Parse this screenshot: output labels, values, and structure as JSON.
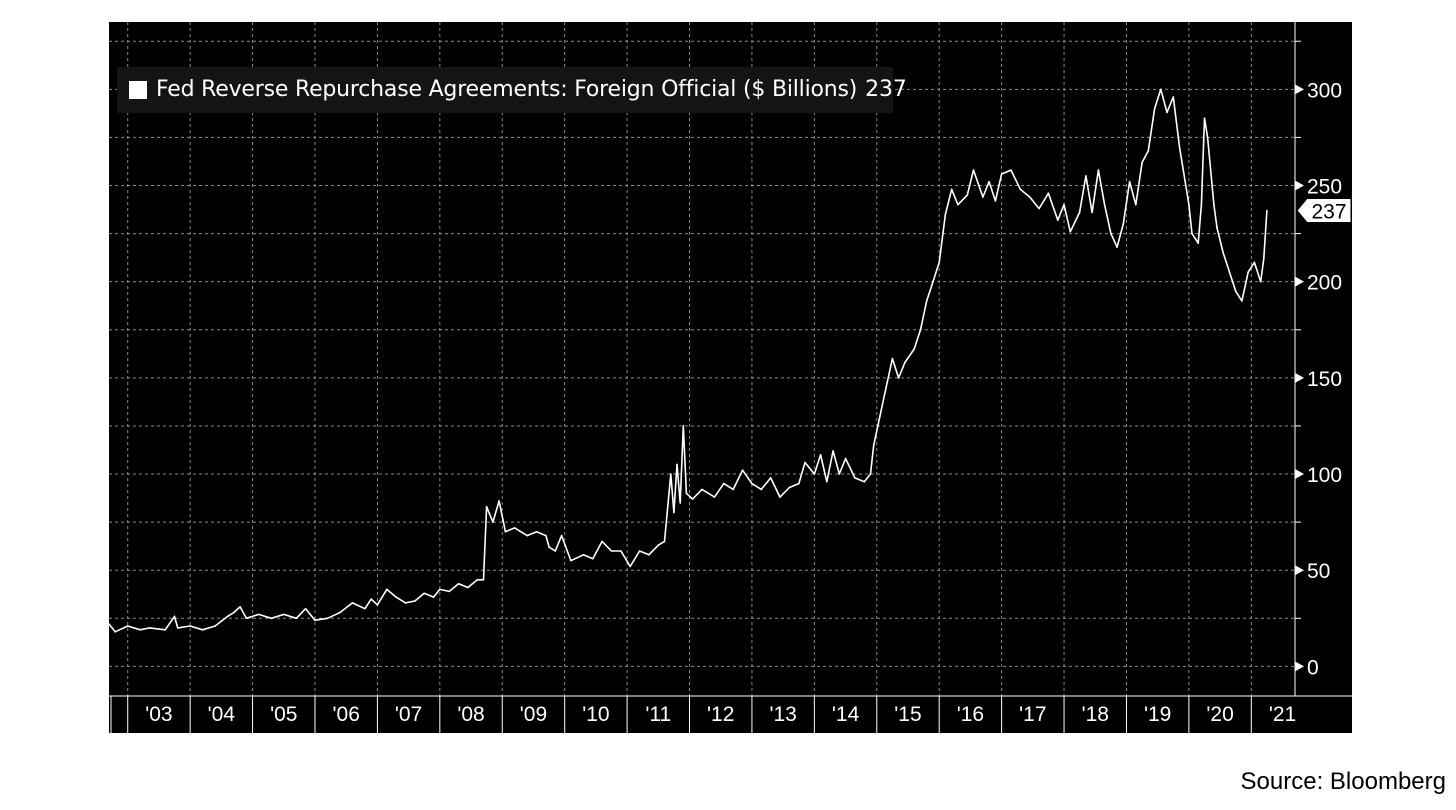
{
  "legend": {
    "label": "Fed Reverse Repurchase Agreements: Foreign Official ($ Billions)",
    "last_value": "237"
  },
  "source": "Source: Bloomberg",
  "colors": {
    "background": "#000000",
    "line": "#ffffff",
    "grid": "#8a8a8a",
    "axis": "#ffffff"
  },
  "chart_data": {
    "type": "line",
    "title": "",
    "xlabel": "",
    "ylabel": "",
    "y_axis_side": "right",
    "ylim": [
      -5,
      335
    ],
    "xlim": [
      2002.7,
      2021.7
    ],
    "grid": true,
    "legend_position": "top-left",
    "y_ticks": [
      0,
      50,
      100,
      150,
      200,
      250,
      300
    ],
    "x_ticks": [
      "'03",
      "'04",
      "'05",
      "'06",
      "'07",
      "'08",
      "'09",
      "'10",
      "'11",
      "'12",
      "'13",
      "'14",
      "'15",
      "'16",
      "'17",
      "'18",
      "'19",
      "'20",
      "'21"
    ],
    "last_value_label": "237",
    "series": [
      {
        "name": "Fed Reverse Repurchase Agreements: Foreign Official ($ Billions)",
        "points": [
          [
            2002.7,
            22
          ],
          [
            2002.8,
            18
          ],
          [
            2003.0,
            21
          ],
          [
            2003.2,
            19
          ],
          [
            2003.35,
            20
          ],
          [
            2003.6,
            19
          ],
          [
            2003.75,
            26
          ],
          [
            2003.8,
            20
          ],
          [
            2004.0,
            21
          ],
          [
            2004.2,
            19
          ],
          [
            2004.4,
            21
          ],
          [
            2004.6,
            26
          ],
          [
            2004.7,
            28
          ],
          [
            2004.8,
            31
          ],
          [
            2004.9,
            25
          ],
          [
            2005.1,
            27
          ],
          [
            2005.3,
            25
          ],
          [
            2005.5,
            27
          ],
          [
            2005.7,
            25
          ],
          [
            2005.85,
            30
          ],
          [
            2006.0,
            24
          ],
          [
            2006.2,
            25
          ],
          [
            2006.4,
            28
          ],
          [
            2006.6,
            33
          ],
          [
            2006.8,
            30
          ],
          [
            2006.9,
            35
          ],
          [
            2007.0,
            32
          ],
          [
            2007.15,
            40
          ],
          [
            2007.3,
            36
          ],
          [
            2007.45,
            33
          ],
          [
            2007.6,
            34
          ],
          [
            2007.75,
            38
          ],
          [
            2007.9,
            36
          ],
          [
            2008.0,
            40
          ],
          [
            2008.15,
            39
          ],
          [
            2008.3,
            43
          ],
          [
            2008.45,
            41
          ],
          [
            2008.6,
            45
          ],
          [
            2008.7,
            45
          ],
          [
            2008.75,
            83
          ],
          [
            2008.85,
            75
          ],
          [
            2008.95,
            86
          ],
          [
            2009.05,
            70
          ],
          [
            2009.2,
            72
          ],
          [
            2009.4,
            68
          ],
          [
            2009.55,
            70
          ],
          [
            2009.7,
            68
          ],
          [
            2009.75,
            62
          ],
          [
            2009.85,
            60
          ],
          [
            2009.95,
            68
          ],
          [
            2010.1,
            55
          ],
          [
            2010.3,
            58
          ],
          [
            2010.45,
            56
          ],
          [
            2010.6,
            65
          ],
          [
            2010.75,
            60
          ],
          [
            2010.9,
            60
          ],
          [
            2011.05,
            52
          ],
          [
            2011.2,
            60
          ],
          [
            2011.35,
            58
          ],
          [
            2011.5,
            63
          ],
          [
            2011.6,
            65
          ],
          [
            2011.7,
            100
          ],
          [
            2011.75,
            80
          ],
          [
            2011.8,
            105
          ],
          [
            2011.85,
            85
          ],
          [
            2011.9,
            125
          ],
          [
            2011.95,
            90
          ],
          [
            2012.05,
            87
          ],
          [
            2012.2,
            92
          ],
          [
            2012.4,
            88
          ],
          [
            2012.55,
            95
          ],
          [
            2012.7,
            92
          ],
          [
            2012.85,
            102
          ],
          [
            2013.0,
            95
          ],
          [
            2013.15,
            92
          ],
          [
            2013.3,
            98
          ],
          [
            2013.45,
            88
          ],
          [
            2013.6,
            93
          ],
          [
            2013.75,
            95
          ],
          [
            2013.85,
            106
          ],
          [
            2014.0,
            100
          ],
          [
            2014.1,
            110
          ],
          [
            2014.2,
            96
          ],
          [
            2014.3,
            112
          ],
          [
            2014.4,
            100
          ],
          [
            2014.5,
            108
          ],
          [
            2014.65,
            98
          ],
          [
            2014.8,
            96
          ],
          [
            2014.9,
            100
          ],
          [
            2014.95,
            115
          ],
          [
            2015.05,
            130
          ],
          [
            2015.15,
            145
          ],
          [
            2015.25,
            160
          ],
          [
            2015.35,
            150
          ],
          [
            2015.45,
            158
          ],
          [
            2015.6,
            165
          ],
          [
            2015.7,
            175
          ],
          [
            2015.8,
            190
          ],
          [
            2015.9,
            200
          ],
          [
            2016.0,
            210
          ],
          [
            2016.1,
            235
          ],
          [
            2016.2,
            248
          ],
          [
            2016.3,
            240
          ],
          [
            2016.45,
            245
          ],
          [
            2016.55,
            258
          ],
          [
            2016.7,
            244
          ],
          [
            2016.8,
            252
          ],
          [
            2016.9,
            242
          ],
          [
            2017.0,
            256
          ],
          [
            2017.15,
            258
          ],
          [
            2017.3,
            248
          ],
          [
            2017.45,
            244
          ],
          [
            2017.6,
            238
          ],
          [
            2017.75,
            246
          ],
          [
            2017.9,
            232
          ],
          [
            2018.0,
            240
          ],
          [
            2018.1,
            226
          ],
          [
            2018.25,
            236
          ],
          [
            2018.35,
            255
          ],
          [
            2018.45,
            236
          ],
          [
            2018.55,
            258
          ],
          [
            2018.65,
            240
          ],
          [
            2018.75,
            225
          ],
          [
            2018.85,
            218
          ],
          [
            2018.95,
            230
          ],
          [
            2019.05,
            252
          ],
          [
            2019.15,
            240
          ],
          [
            2019.25,
            262
          ],
          [
            2019.35,
            268
          ],
          [
            2019.45,
            290
          ],
          [
            2019.55,
            300
          ],
          [
            2019.65,
            288
          ],
          [
            2019.75,
            296
          ],
          [
            2019.85,
            270
          ],
          [
            2019.95,
            250
          ],
          [
            2020.0,
            240
          ],
          [
            2020.05,
            225
          ],
          [
            2020.15,
            220
          ],
          [
            2020.2,
            240
          ],
          [
            2020.25,
            285
          ],
          [
            2020.3,
            275
          ],
          [
            2020.4,
            240
          ],
          [
            2020.45,
            228
          ],
          [
            2020.55,
            215
          ],
          [
            2020.65,
            205
          ],
          [
            2020.75,
            195
          ],
          [
            2020.85,
            190
          ],
          [
            2020.95,
            205
          ],
          [
            2021.05,
            210
          ],
          [
            2021.15,
            200
          ],
          [
            2021.2,
            212
          ],
          [
            2021.25,
            237
          ]
        ]
      }
    ]
  }
}
